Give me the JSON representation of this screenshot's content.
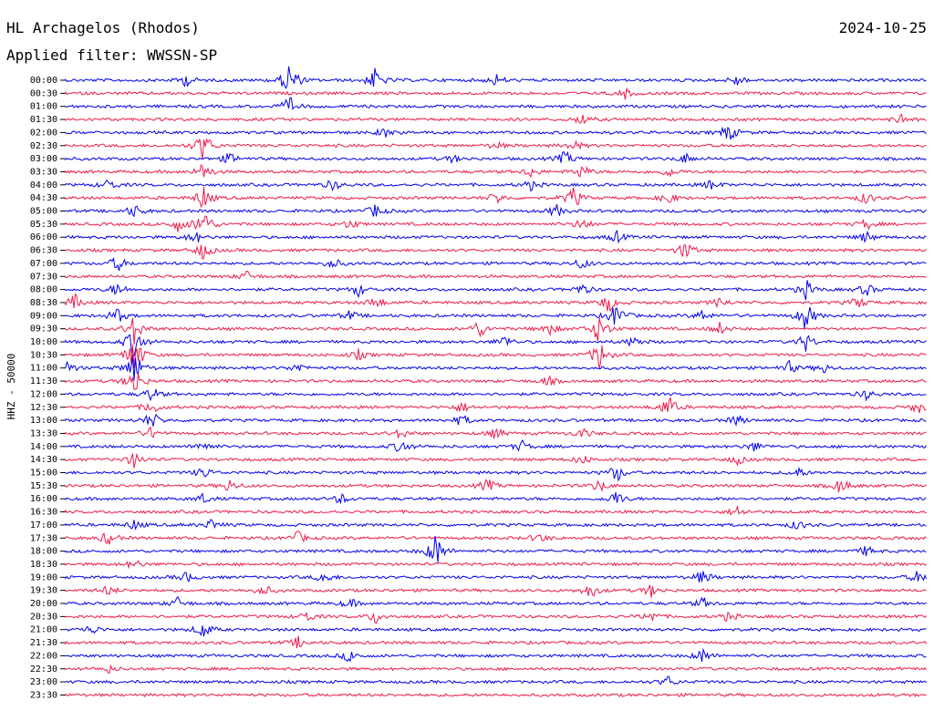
{
  "header": {
    "station": "HL Archagelos (Rhodos)",
    "date": "2024-10-25",
    "filter": "Applied filter: WWSSN-SP"
  },
  "chart_data": {
    "type": "line",
    "title": "HL Archagelos (Rhodos)",
    "ylabel": "HHZ - 50000",
    "xlabel": "",
    "grid": false,
    "row_interval_minutes": 30,
    "colors": {
      "even_rows": "#0000ee",
      "odd_rows": "#ee1a4a"
    },
    "rows": [
      {
        "label": "00:00",
        "events": [
          [
            0.14,
            1.0
          ],
          [
            0.26,
            3.2
          ],
          [
            0.36,
            2.0
          ],
          [
            0.5,
            0.9
          ],
          [
            0.78,
            0.9
          ]
        ]
      },
      {
        "label": "00:30",
        "events": [
          [
            0.65,
            0.8
          ]
        ]
      },
      {
        "label": "01:00",
        "events": [
          [
            0.26,
            1.5
          ]
        ]
      },
      {
        "label": "01:30",
        "events": [
          [
            0.6,
            0.9
          ],
          [
            0.97,
            0.9
          ]
        ]
      },
      {
        "label": "02:00",
        "events": [
          [
            0.37,
            0.8
          ],
          [
            0.77,
            1.5
          ]
        ]
      },
      {
        "label": "02:30",
        "events": [
          [
            0.16,
            2.5
          ],
          [
            0.5,
            0.6
          ],
          [
            0.59,
            0.8
          ]
        ]
      },
      {
        "label": "03:00",
        "events": [
          [
            0.19,
            0.9
          ],
          [
            0.45,
            0.6
          ],
          [
            0.58,
            1.2
          ],
          [
            0.72,
            0.8
          ]
        ]
      },
      {
        "label": "03:30",
        "events": [
          [
            0.16,
            1.5
          ],
          [
            0.54,
            0.8
          ],
          [
            0.6,
            1.2
          ],
          [
            0.7,
            0.8
          ]
        ]
      },
      {
        "label": "04:00",
        "events": [
          [
            0.05,
            1.0
          ],
          [
            0.31,
            0.9
          ],
          [
            0.54,
            0.8
          ],
          [
            0.75,
            0.8
          ]
        ]
      },
      {
        "label": "04:30",
        "events": [
          [
            0.16,
            2.0
          ],
          [
            0.5,
            1.0
          ],
          [
            0.59,
            1.8
          ],
          [
            0.7,
            1.0
          ],
          [
            0.93,
            1.0
          ]
        ]
      },
      {
        "label": "05:00",
        "events": [
          [
            0.08,
            1.0
          ],
          [
            0.36,
            1.1
          ],
          [
            0.57,
            1.0
          ]
        ]
      },
      {
        "label": "05:30",
        "events": [
          [
            0.16,
            2.8
          ],
          [
            0.13,
            1.1
          ],
          [
            0.33,
            0.8
          ],
          [
            0.6,
            1.0
          ],
          [
            0.93,
            0.9
          ]
        ]
      },
      {
        "label": "06:00",
        "events": [
          [
            0.15,
            1.1
          ],
          [
            0.64,
            0.9
          ],
          [
            0.93,
            0.9
          ]
        ]
      },
      {
        "label": "06:30",
        "events": [
          [
            0.16,
            1.5
          ],
          [
            0.72,
            1.5
          ]
        ]
      },
      {
        "label": "07:00",
        "events": [
          [
            0.06,
            1.3
          ],
          [
            0.31,
            0.9
          ],
          [
            0.6,
            0.9
          ]
        ]
      },
      {
        "label": "07:30",
        "events": [
          [
            0.21,
            0.8
          ]
        ]
      },
      {
        "label": "08:00",
        "events": [
          [
            0.06,
            1.1
          ],
          [
            0.34,
            1.0
          ],
          [
            0.6,
            0.9
          ],
          [
            0.86,
            1.5
          ],
          [
            0.93,
            1.0
          ]
        ]
      },
      {
        "label": "08:30",
        "events": [
          [
            0.01,
            1.3
          ],
          [
            0.36,
            1.0
          ],
          [
            0.63,
            1.6
          ],
          [
            0.76,
            0.9
          ],
          [
            0.92,
            1.0
          ]
        ]
      },
      {
        "label": "09:00",
        "events": [
          [
            0.06,
            1.3
          ],
          [
            0.33,
            0.8
          ],
          [
            0.64,
            2.2
          ],
          [
            0.74,
            0.9
          ],
          [
            0.86,
            2.5
          ]
        ]
      },
      {
        "label": "09:30",
        "events": [
          [
            0.08,
            2.5
          ],
          [
            0.48,
            1.5
          ],
          [
            0.56,
            1.2
          ],
          [
            0.62,
            2.5
          ],
          [
            0.76,
            1.0
          ]
        ]
      },
      {
        "label": "10:00",
        "events": [
          [
            0.08,
            3.0
          ],
          [
            0.51,
            1.0
          ],
          [
            0.66,
            0.9
          ],
          [
            0.86,
            1.5
          ]
        ]
      },
      {
        "label": "10:30",
        "events": [
          [
            0.08,
            3.5
          ],
          [
            0.34,
            0.8
          ],
          [
            0.62,
            2.5
          ]
        ]
      },
      {
        "label": "11:00",
        "events": [
          [
            0.0,
            1.5
          ],
          [
            0.08,
            3.0
          ],
          [
            0.27,
            0.8
          ],
          [
            0.84,
            1.0
          ],
          [
            0.88,
            0.8
          ]
        ]
      },
      {
        "label": "11:30",
        "events": [
          [
            0.08,
            2.5
          ],
          [
            0.56,
            0.8
          ]
        ]
      },
      {
        "label": "12:00",
        "events": [
          [
            0.1,
            1.2
          ],
          [
            0.93,
            0.8
          ]
        ]
      },
      {
        "label": "12:30",
        "events": [
          [
            0.1,
            1.2
          ],
          [
            0.46,
            0.9
          ],
          [
            0.7,
            2.0
          ],
          [
            0.99,
            1.0
          ]
        ]
      },
      {
        "label": "13:00",
        "events": [
          [
            0.1,
            1.5
          ],
          [
            0.46,
            0.9
          ],
          [
            0.78,
            0.9
          ]
        ]
      },
      {
        "label": "13:30",
        "events": [
          [
            0.1,
            1.0
          ],
          [
            0.39,
            0.9
          ],
          [
            0.5,
            0.9
          ],
          [
            0.6,
            0.8
          ]
        ]
      },
      {
        "label": "14:00",
        "events": [
          [
            0.16,
            1.0
          ],
          [
            0.39,
            1.2
          ],
          [
            0.53,
            0.9
          ],
          [
            0.8,
            0.8
          ]
        ]
      },
      {
        "label": "14:30",
        "events": [
          [
            0.08,
            1.3
          ],
          [
            0.6,
            0.8
          ],
          [
            0.78,
            0.8
          ]
        ]
      },
      {
        "label": "15:00",
        "events": [
          [
            0.16,
            1.0
          ],
          [
            0.64,
            1.5
          ],
          [
            0.85,
            0.9
          ]
        ]
      },
      {
        "label": "15:30",
        "events": [
          [
            0.19,
            1.0
          ],
          [
            0.49,
            1.1
          ],
          [
            0.62,
            1.0
          ],
          [
            0.9,
            1.3
          ]
        ]
      },
      {
        "label": "16:00",
        "events": [
          [
            0.16,
            0.8
          ],
          [
            0.32,
            0.8
          ],
          [
            0.64,
            1.3
          ]
        ]
      },
      {
        "label": "16:30",
        "events": [
          [
            0.78,
            0.9
          ]
        ]
      },
      {
        "label": "17:00",
        "events": [
          [
            0.08,
            0.8
          ],
          [
            0.17,
            0.9
          ],
          [
            0.85,
            0.8
          ]
        ]
      },
      {
        "label": "17:30",
        "events": [
          [
            0.05,
            1.2
          ],
          [
            0.27,
            1.0
          ],
          [
            0.55,
            0.8
          ]
        ]
      },
      {
        "label": "18:00",
        "events": [
          [
            0.43,
            3.0
          ],
          [
            0.93,
            0.8
          ]
        ]
      },
      {
        "label": "18:30",
        "events": [
          [
            0.08,
            0.8
          ]
        ]
      },
      {
        "label": "19:00",
        "events": [
          [
            0.14,
            0.8
          ],
          [
            0.3,
            1.0
          ],
          [
            0.74,
            1.2
          ],
          [
            0.99,
            1.0
          ]
        ]
      },
      {
        "label": "19:30",
        "events": [
          [
            0.05,
            0.8
          ],
          [
            0.23,
            0.9
          ],
          [
            0.61,
            1.3
          ],
          [
            0.68,
            1.0
          ]
        ]
      },
      {
        "label": "20:00",
        "events": [
          [
            0.13,
            0.9
          ],
          [
            0.33,
            0.8
          ],
          [
            0.74,
            0.9
          ]
        ]
      },
      {
        "label": "20:30",
        "events": [
          [
            0.28,
            0.9
          ],
          [
            0.36,
            1.1
          ],
          [
            0.68,
            1.0
          ],
          [
            0.77,
            0.8
          ]
        ]
      },
      {
        "label": "21:00",
        "events": [
          [
            0.03,
            0.8
          ],
          [
            0.16,
            1.5
          ]
        ]
      },
      {
        "label": "21:30",
        "events": [
          [
            0.27,
            0.9
          ]
        ]
      },
      {
        "label": "22:00",
        "events": [
          [
            0.33,
            1.0
          ],
          [
            0.74,
            1.2
          ]
        ]
      },
      {
        "label": "22:30",
        "events": [
          [
            0.05,
            0.6
          ]
        ]
      },
      {
        "label": "23:00",
        "events": [
          [
            0.7,
            0.9
          ]
        ]
      },
      {
        "label": "23:30",
        "events": []
      }
    ]
  }
}
